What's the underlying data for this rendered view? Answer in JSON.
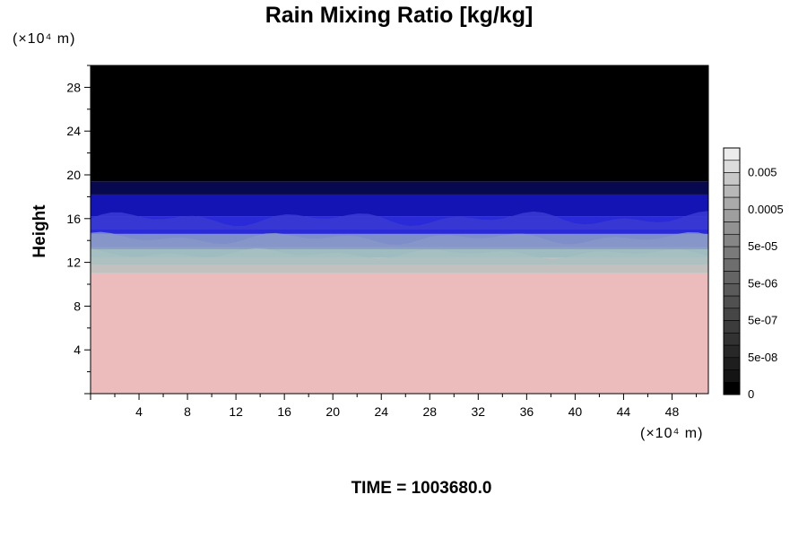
{
  "chart_data": {
    "type": "heatmap",
    "title": "Rain Mixing Ratio [kg/kg]",
    "ylabel": "Height",
    "x_unit_label": "(×10⁴ m)",
    "y_unit_label": "(×10⁴ m)",
    "xlim": [
      0,
      51
    ],
    "ylim": [
      0,
      30
    ],
    "x_ticks": [
      "4",
      "8",
      "12",
      "16",
      "20",
      "24",
      "28",
      "32",
      "36",
      "40",
      "44",
      "48"
    ],
    "y_ticks": [
      "4",
      "8",
      "12",
      "16",
      "20",
      "24",
      "28"
    ],
    "colorbar_labels": [
      "0.005",
      "0.0005",
      "5e-05",
      "5e-06",
      "5e-07",
      "5e-08",
      "0"
    ],
    "colorbar_levels": [
      "0",
      "1e-08",
      "2e-08",
      "5e-08",
      "1e-07",
      "2e-07",
      "5e-07",
      "1e-06",
      "2e-06",
      "5e-06",
      "1e-05",
      "2e-05",
      "5e-05",
      "1e-04",
      "2e-04",
      "5e-04",
      "1e-03",
      "2e-03",
      "5e-03",
      "1e-02"
    ],
    "colorbar_colors": [
      "#000000",
      "#141414",
      "#1e1e1e",
      "#282828",
      "#323232",
      "#3c3c3c",
      "#464646",
      "#505050",
      "#5a5a5a",
      "#646464",
      "#6e6e6e",
      "#7a7a7a",
      "#868686",
      "#929292",
      "#9e9e9e",
      "#aaaaaa",
      "#b8b8b8",
      "#c8c8c8",
      "#dcdcdc",
      "#ececec"
    ],
    "field_bands": [
      {
        "from": 0,
        "to": 11.0,
        "color": "#ecbcbc"
      },
      {
        "from": 11.0,
        "to": 12.4,
        "color": "#c3c0c0"
      },
      {
        "from": 12.4,
        "to": 13.4,
        "color": "#9fbcc0"
      },
      {
        "from": 13.4,
        "to": 14.6,
        "color": "#7e8ec8"
      },
      {
        "from": 14.6,
        "to": 16.2,
        "color": "#2a2ad8"
      },
      {
        "from": 16.2,
        "to": 18.2,
        "color": "#1414b4"
      },
      {
        "from": 18.2,
        "to": 19.4,
        "color": "#08084e"
      },
      {
        "from": 19.4,
        "to": 30,
        "color": "#000000"
      }
    ],
    "time_label": "TIME = 1003680.0"
  }
}
